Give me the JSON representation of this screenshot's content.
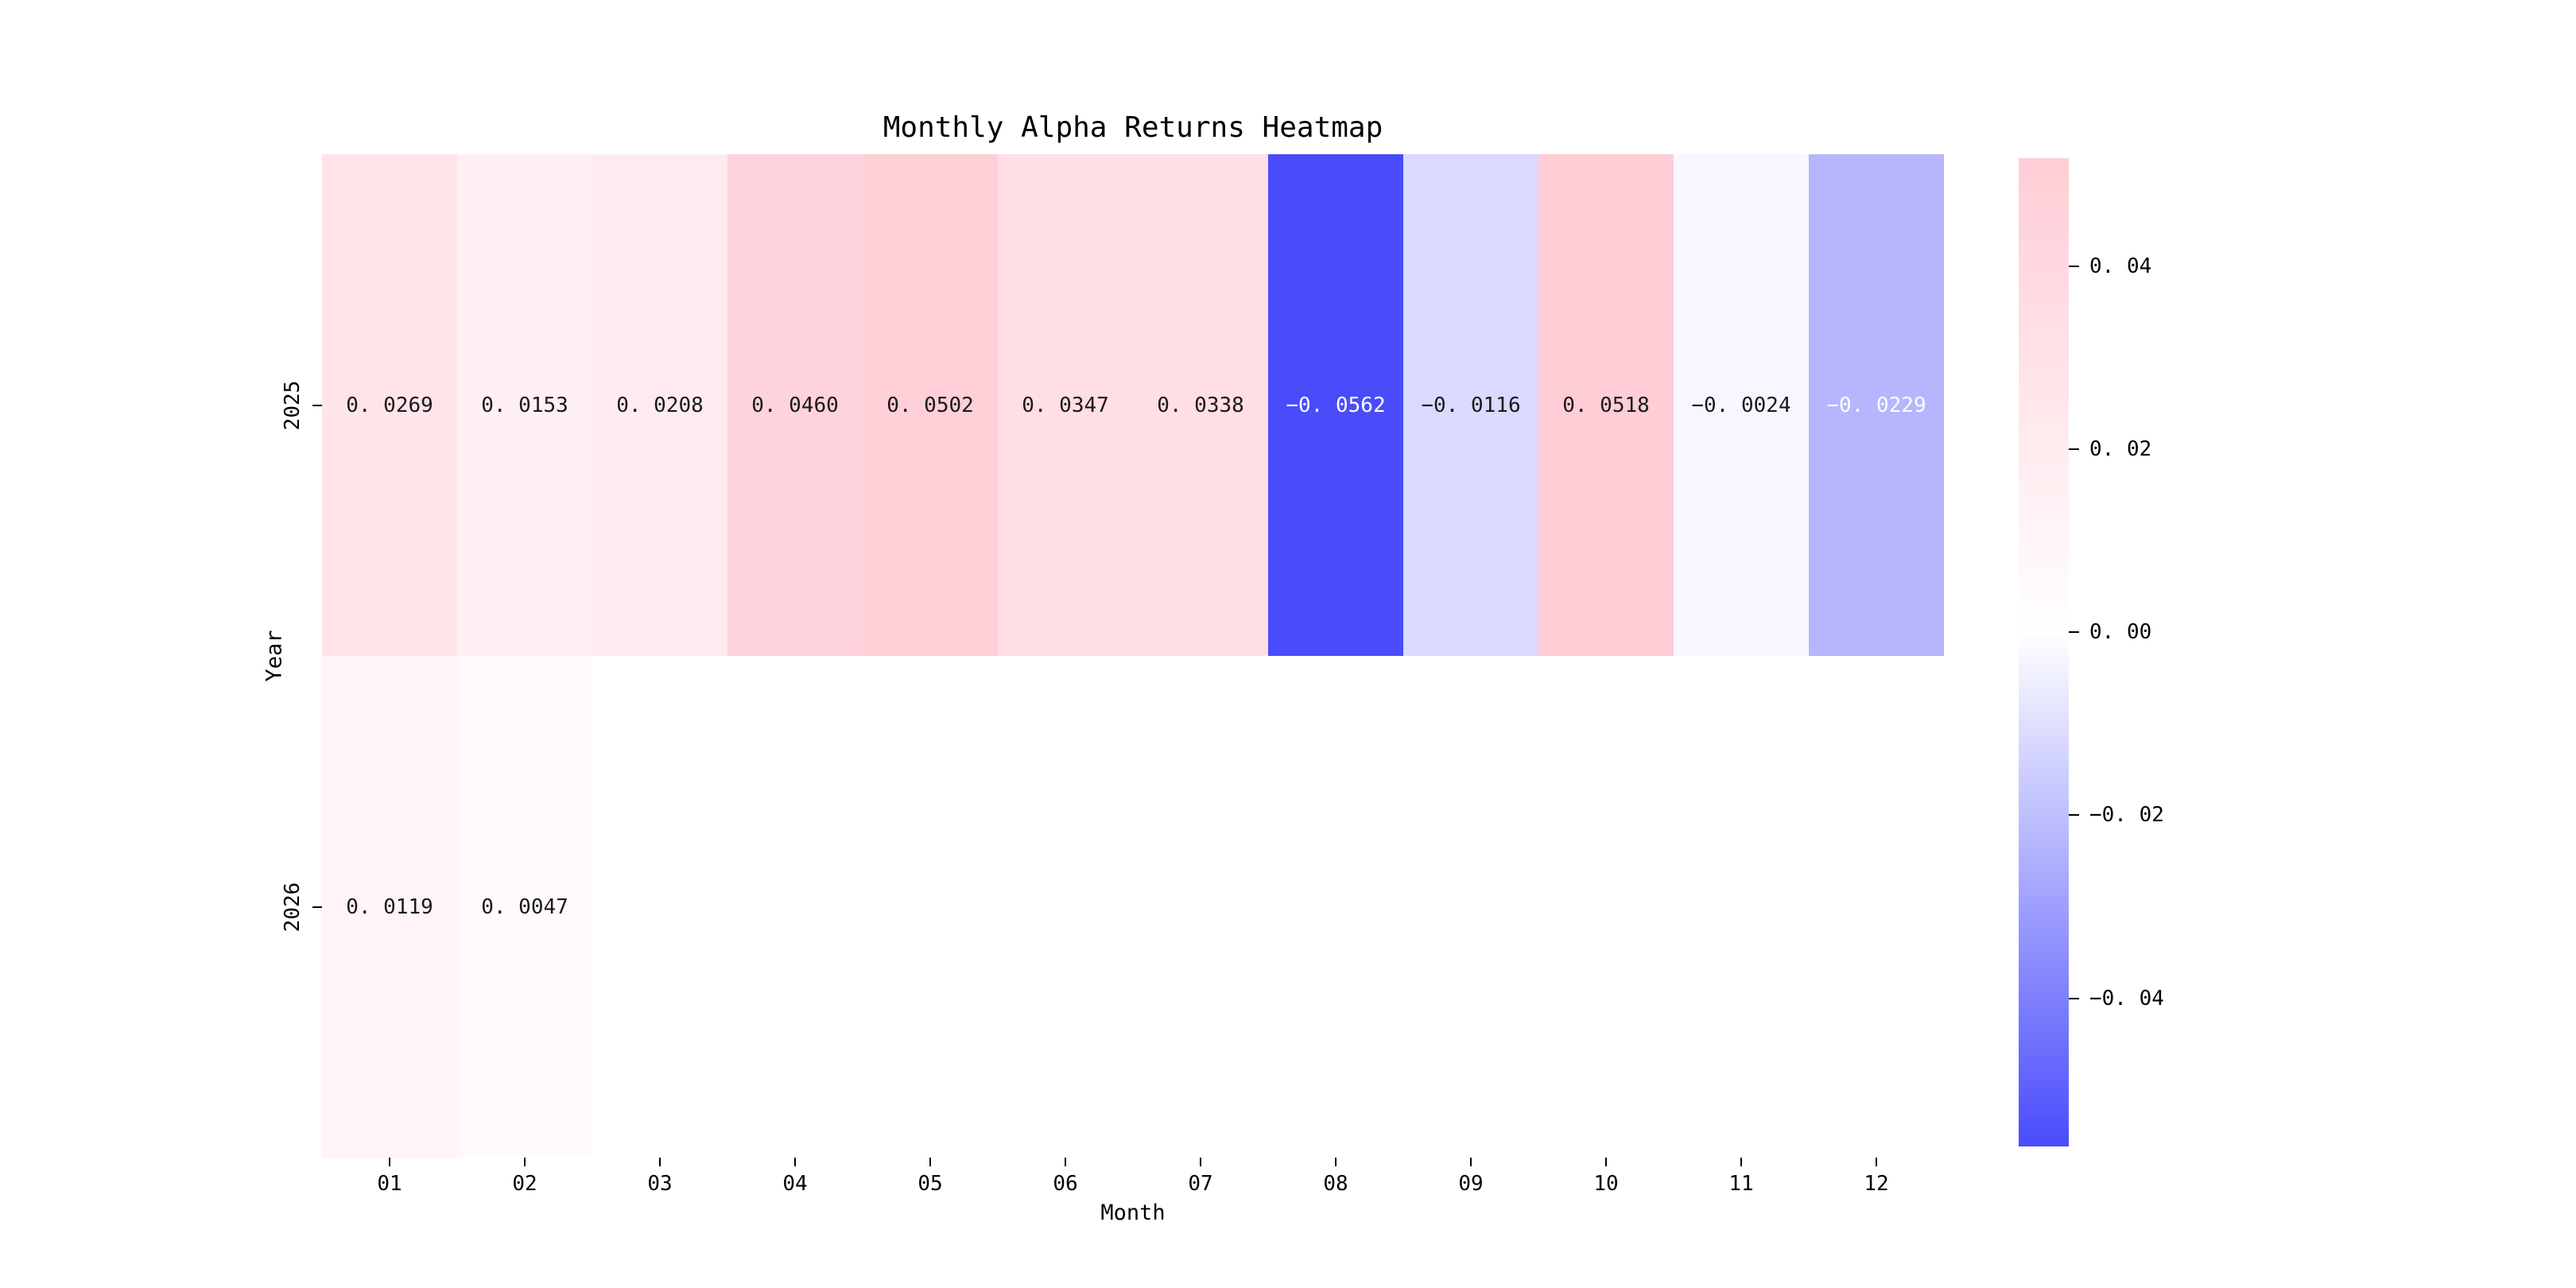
{
  "title": "Monthly Alpha Returns Heatmap",
  "colors": {
    "background": "#ffffff",
    "positive_end": "#ffcdd6",
    "center": "#ffffff",
    "negative_end": "#4a4cfb",
    "annotation_dark": "#1a1a1a",
    "annotation_light": "#ffffff",
    "axis_text": "#000000"
  },
  "chart_data": {
    "type": "heatmap",
    "title": "Monthly Alpha Returns Heatmap",
    "xlabel": "Month",
    "ylabel": "Year",
    "x_categories": [
      "01",
      "02",
      "03",
      "04",
      "05",
      "06",
      "07",
      "08",
      "09",
      "10",
      "11",
      "12"
    ],
    "y_categories": [
      "2025",
      "2026"
    ],
    "values": [
      [
        0.0269,
        0.0153,
        0.0208,
        0.046,
        0.0502,
        0.0347,
        0.0338,
        -0.0562,
        -0.0116,
        0.0518,
        -0.0024,
        -0.0229
      ],
      [
        0.0119,
        0.0047,
        null,
        null,
        null,
        null,
        null,
        null,
        null,
        null,
        null,
        null
      ]
    ],
    "cell_labels": [
      [
        "0. 0269",
        "0. 0153",
        "0. 0208",
        "0. 0460",
        "0. 0502",
        "0. 0347",
        "0. 0338",
        "−0. 0562",
        "−0. 0116",
        "0. 0518",
        "−0. 0024",
        "−0. 0229"
      ],
      [
        "0. 0119",
        "0. 0047",
        null,
        null,
        null,
        null,
        null,
        null,
        null,
        null,
        null,
        null
      ]
    ],
    "white_text_cells": [
      [
        0,
        7
      ],
      [
        0,
        11
      ]
    ],
    "grid": false,
    "colorbar": {
      "vmin": -0.0562,
      "vmax": 0.0518,
      "ticks": [
        {
          "value": 0.04,
          "label": "0. 04"
        },
        {
          "value": 0.02,
          "label": "0. 02"
        },
        {
          "value": 0.0,
          "label": "0. 00"
        },
        {
          "value": -0.02,
          "label": "−0. 02"
        },
        {
          "value": -0.04,
          "label": "−0. 04"
        }
      ]
    }
  }
}
